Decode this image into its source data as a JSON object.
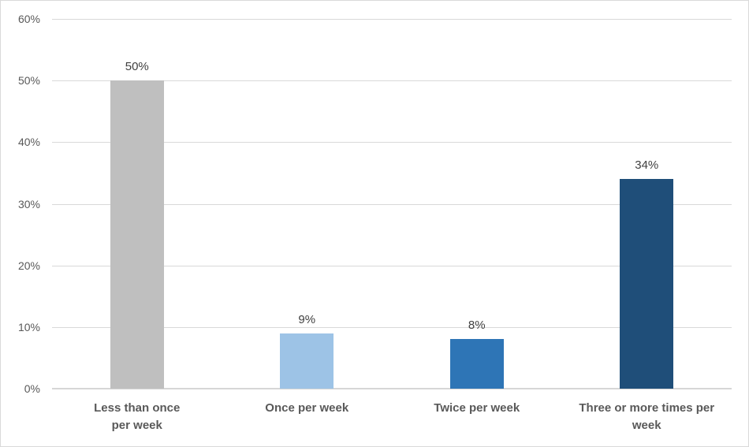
{
  "chart_data": {
    "type": "bar",
    "categories": [
      "Less than once per week",
      "Once per week",
      "Twice per week",
      "Three or more times per week"
    ],
    "category_label_lines": [
      [
        "Less than once",
        "per week"
      ],
      [
        "Once per week"
      ],
      [
        "Twice per week"
      ],
      [
        "Three or more times per",
        "week"
      ]
    ],
    "values": [
      50,
      9,
      8,
      34
    ],
    "data_labels": [
      "50%",
      "9%",
      "8%",
      "34%"
    ],
    "bar_colors": [
      "#BFBFBF",
      "#9DC3E6",
      "#2E75B6",
      "#1F4E79"
    ],
    "ylim": [
      0,
      60
    ],
    "y_ticks": [
      0,
      10,
      20,
      30,
      40,
      50,
      60
    ],
    "y_tick_labels": [
      "0%",
      "10%",
      "20%",
      "30%",
      "40%",
      "50%",
      "60%"
    ],
    "grid": "horizontal gridlines on",
    "legend": "none",
    "colors": {
      "gridline": "#D9D9D9",
      "axis_line": "#D6D6D6",
      "tick_label": "#595959",
      "category_label": "#595959",
      "data_label": "#404040",
      "background": "#FFFFFF",
      "frame_border": "#D9D9D9"
    }
  }
}
